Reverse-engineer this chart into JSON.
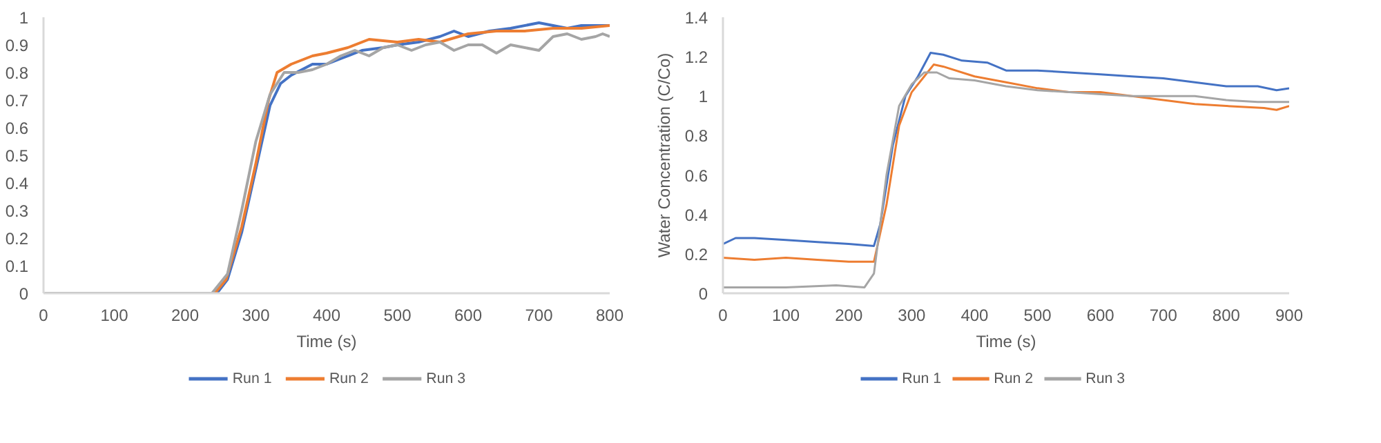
{
  "chart_data": [
    {
      "type": "line",
      "xlabel": "Time (s)",
      "xlim": [
        0,
        800
      ],
      "ylim": [
        0,
        1
      ],
      "xticks": [
        0,
        100,
        200,
        300,
        400,
        500,
        600,
        700,
        800
      ],
      "yticks": [
        0,
        0.1,
        0.2,
        0.3,
        0.4,
        0.5,
        0.6,
        0.7,
        0.8,
        0.9,
        1
      ],
      "grid": false,
      "legend": "bottom",
      "marker": "none",
      "line_style": "solid",
      "series": [
        {
          "name": "Run 1",
          "color": "#4472c4",
          "x": [
            245,
            260,
            280,
            300,
            320,
            335,
            350,
            380,
            400,
            420,
            450,
            480,
            500,
            530,
            560,
            580,
            600,
            630,
            660,
            700,
            720,
            740,
            760,
            800
          ],
          "values": [
            0,
            0.05,
            0.22,
            0.45,
            0.68,
            0.76,
            0.79,
            0.83,
            0.83,
            0.85,
            0.88,
            0.89,
            0.9,
            0.91,
            0.93,
            0.95,
            0.93,
            0.95,
            0.96,
            0.98,
            0.97,
            0.96,
            0.97,
            0.97
          ]
        },
        {
          "name": "Run 2",
          "color": "#ed7d31",
          "x": [
            242,
            258,
            280,
            300,
            318,
            330,
            350,
            380,
            400,
            430,
            460,
            500,
            530,
            560,
            600,
            640,
            680,
            720,
            760,
            800
          ],
          "values": [
            0,
            0.05,
            0.24,
            0.47,
            0.7,
            0.8,
            0.83,
            0.86,
            0.87,
            0.89,
            0.92,
            0.91,
            0.92,
            0.91,
            0.94,
            0.95,
            0.95,
            0.96,
            0.96,
            0.97
          ]
        },
        {
          "name": "Run 3",
          "color": "#a5a5a5",
          "x": [
            0,
            100,
            200,
            238,
            260,
            280,
            300,
            320,
            340,
            360,
            380,
            400,
            420,
            440,
            460,
            480,
            500,
            520,
            540,
            560,
            580,
            600,
            620,
            640,
            660,
            680,
            700,
            720,
            740,
            760,
            780,
            790,
            800
          ],
          "values": [
            0,
            0,
            0,
            0,
            0.07,
            0.3,
            0.55,
            0.72,
            0.8,
            0.8,
            0.81,
            0.83,
            0.86,
            0.88,
            0.86,
            0.89,
            0.9,
            0.88,
            0.9,
            0.91,
            0.88,
            0.9,
            0.9,
            0.87,
            0.9,
            0.89,
            0.88,
            0.93,
            0.94,
            0.92,
            0.93,
            0.94,
            0.93
          ]
        }
      ]
    },
    {
      "type": "line",
      "xlabel": "Time (s)",
      "ylabel": "Water Concentration (C/Co)",
      "xlim": [
        0,
        900
      ],
      "ylim": [
        0,
        1.4
      ],
      "xticks": [
        0,
        100,
        200,
        300,
        400,
        500,
        600,
        700,
        800,
        900
      ],
      "yticks": [
        0,
        0.2,
        0.4,
        0.6,
        0.8,
        1,
        1.2,
        1.4
      ],
      "grid": false,
      "legend": "bottom",
      "marker": "none",
      "line_style": "solid",
      "series": [
        {
          "name": "Run 1",
          "color": "#4472c4",
          "x": [
            0,
            20,
            50,
            100,
            150,
            200,
            240,
            250,
            270,
            290,
            310,
            330,
            350,
            380,
            420,
            450,
            500,
            550,
            600,
            650,
            700,
            750,
            800,
            850,
            880,
            900
          ],
          "values": [
            0.25,
            0.28,
            0.28,
            0.27,
            0.26,
            0.25,
            0.24,
            0.35,
            0.75,
            1.0,
            1.1,
            1.22,
            1.21,
            1.18,
            1.17,
            1.13,
            1.13,
            1.12,
            1.11,
            1.1,
            1.09,
            1.07,
            1.05,
            1.05,
            1.03,
            1.04
          ]
        },
        {
          "name": "Run 2",
          "color": "#ed7d31",
          "x": [
            0,
            50,
            100,
            150,
            200,
            240,
            260,
            280,
            300,
            320,
            335,
            350,
            400,
            450,
            500,
            550,
            600,
            650,
            700,
            750,
            800,
            860,
            880,
            900
          ],
          "values": [
            0.18,
            0.17,
            0.18,
            0.17,
            0.16,
            0.16,
            0.45,
            0.85,
            1.02,
            1.1,
            1.16,
            1.15,
            1.1,
            1.07,
            1.04,
            1.02,
            1.02,
            1.0,
            0.98,
            0.96,
            0.95,
            0.94,
            0.93,
            0.95
          ]
        },
        {
          "name": "Run 3",
          "color": "#a5a5a5",
          "x": [
            0,
            100,
            180,
            225,
            240,
            260,
            280,
            300,
            320,
            340,
            360,
            400,
            450,
            500,
            550,
            600,
            650,
            700,
            750,
            800,
            850,
            900
          ],
          "values": [
            0.03,
            0.03,
            0.04,
            0.03,
            0.1,
            0.6,
            0.95,
            1.06,
            1.12,
            1.12,
            1.09,
            1.08,
            1.05,
            1.03,
            1.02,
            1.01,
            1.0,
            1.0,
            1.0,
            0.98,
            0.97,
            0.97
          ]
        }
      ]
    }
  ]
}
